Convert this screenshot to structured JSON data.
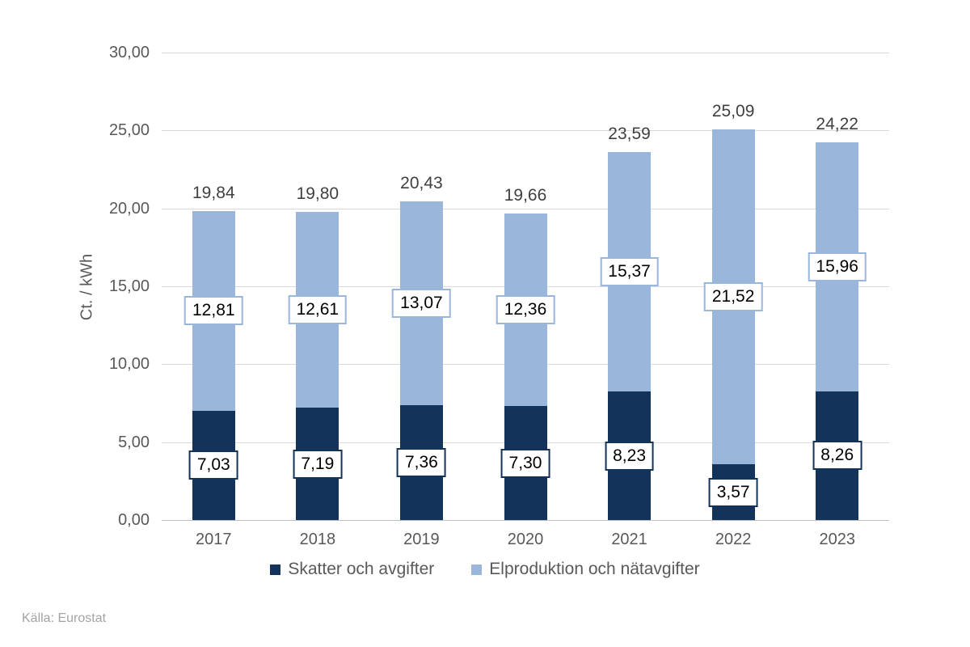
{
  "chart_data": {
    "type": "bar",
    "subtype": "stacked-column",
    "categories": [
      "2017",
      "2018",
      "2019",
      "2020",
      "2021",
      "2022",
      "2023"
    ],
    "series": [
      {
        "name": "Skatter och avgifter",
        "color": "#14335b",
        "values": [
          7.03,
          7.19,
          7.36,
          7.3,
          8.23,
          3.57,
          8.26
        ],
        "labels": [
          "7,03",
          "7,19",
          "7,36",
          "7,30",
          "8,23",
          "3,57",
          "8,26"
        ]
      },
      {
        "name": "Elproduktion och nätavgifter",
        "color": "#9ab6db",
        "values": [
          12.81,
          12.61,
          13.07,
          12.36,
          15.37,
          21.52,
          15.96
        ],
        "labels": [
          "12,81",
          "12,61",
          "13,07",
          "12,36",
          "15,37",
          "21,52",
          "15,96"
        ]
      }
    ],
    "totals": [
      19.84,
      19.8,
      20.43,
      19.66,
      23.59,
      25.09,
      24.22
    ],
    "total_labels": [
      "19,84",
      "19,80",
      "20,43",
      "19,66",
      "23,59",
      "25,09",
      "24,22"
    ],
    "ylabel": "Ct. / kWh",
    "ylim": [
      0,
      30
    ],
    "ytick_values": [
      0,
      5,
      10,
      15,
      20,
      25,
      30
    ],
    "ytick_labels": [
      "0,00",
      "5,00",
      "10,00",
      "15,00",
      "20,00",
      "25,00",
      "30,00"
    ],
    "grid": "horizontal",
    "legend_position": "bottom",
    "source": "Källa: Eurostat"
  }
}
